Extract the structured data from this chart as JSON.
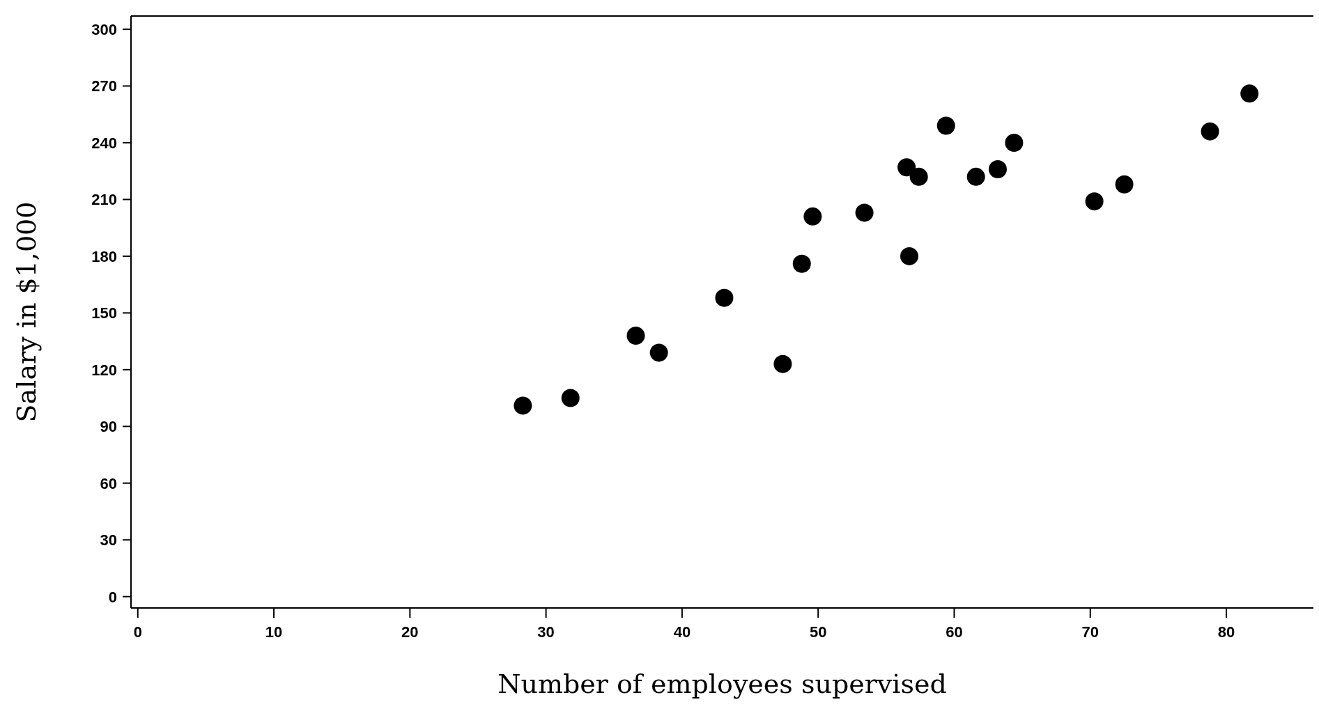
{
  "chart_data": {
    "type": "scatter",
    "xlabel": "Number of employees supervised",
    "ylabel": "Salary in $1,000",
    "x": [
      28.3,
      31.8,
      36.6,
      38.3,
      43.1,
      47.4,
      48.8,
      49.6,
      53.4,
      56.5,
      57.4,
      56.7,
      59.4,
      61.6,
      63.2,
      64.4,
      70.3,
      72.5,
      78.8,
      81.7
    ],
    "values": [
      101,
      105,
      138,
      129,
      158,
      123,
      176,
      201,
      203,
      227,
      222,
      180,
      249,
      222,
      226,
      240,
      209,
      218,
      246,
      266
    ],
    "color": "#000000",
    "marker": "circle",
    "grid": false,
    "legend": false,
    "xlim": [
      -0.5,
      86.4
    ],
    "xticks": [
      0,
      10,
      20,
      30,
      40,
      50,
      60,
      70,
      80
    ],
    "ylim": [
      -6,
      307
    ],
    "yticks": [
      0,
      30,
      60,
      90,
      120,
      150,
      180,
      210,
      240,
      270,
      300
    ]
  }
}
